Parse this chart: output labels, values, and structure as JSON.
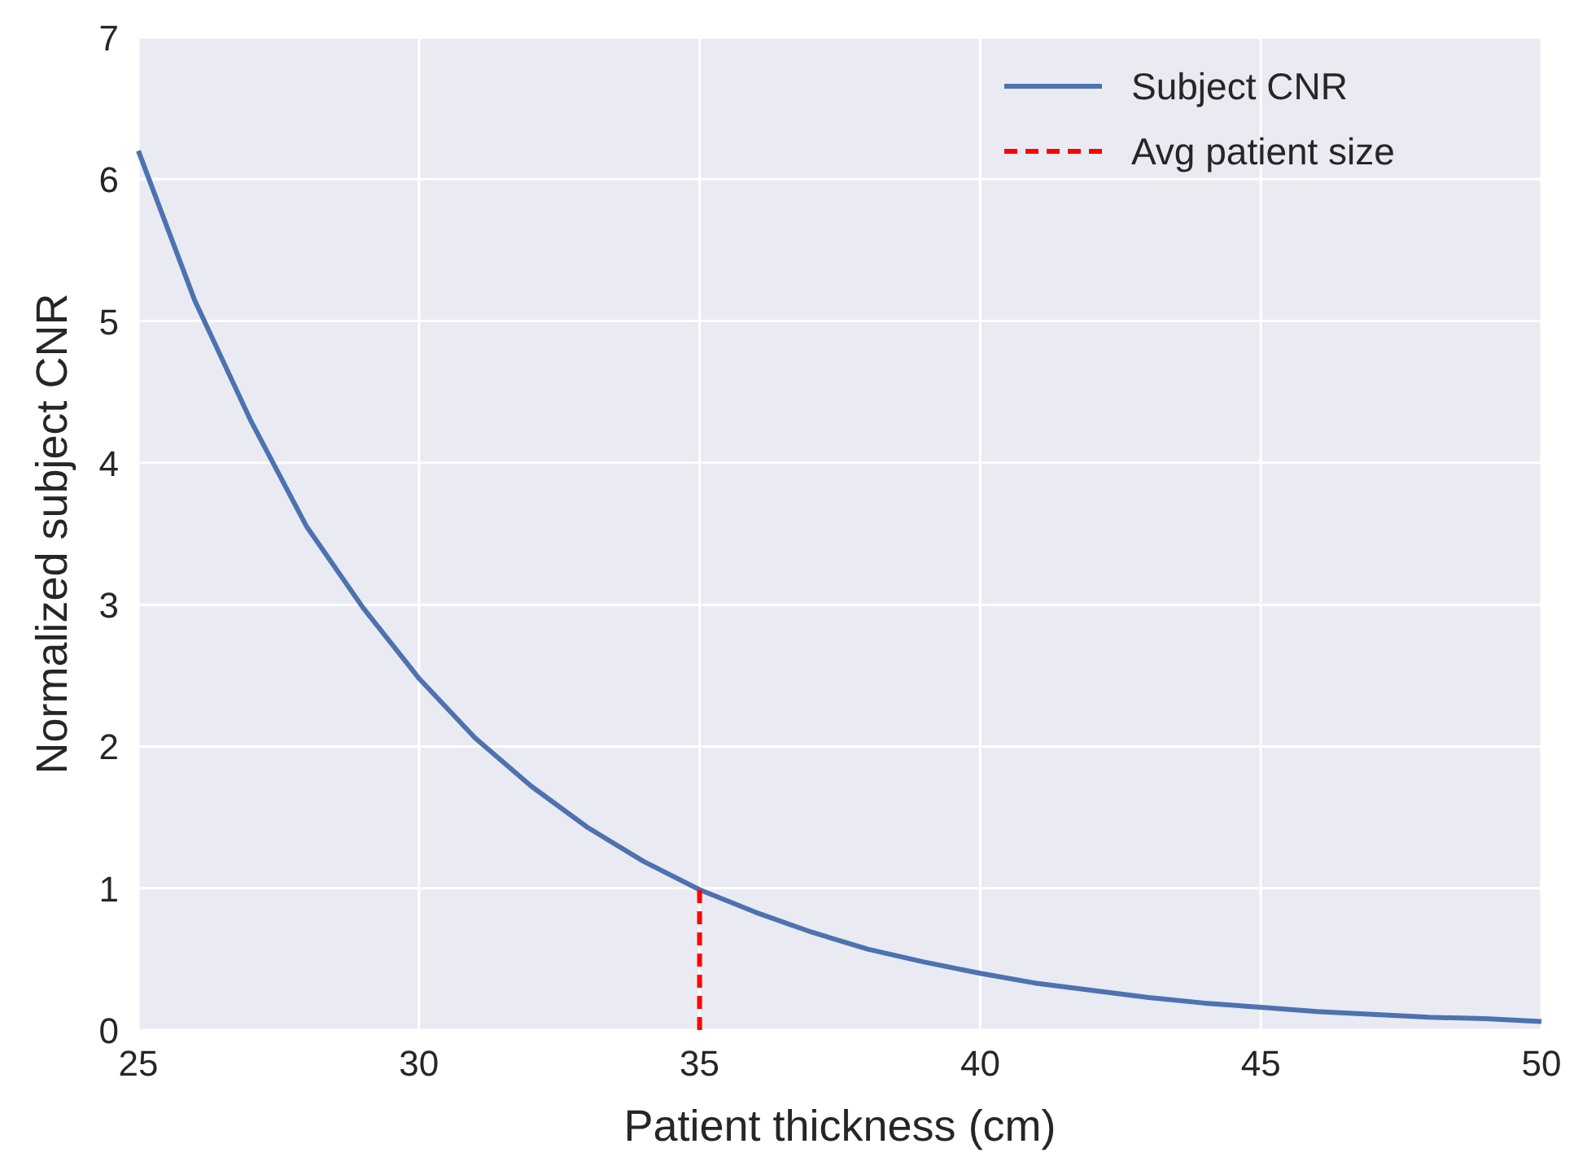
{
  "chart_data": {
    "type": "line",
    "xlabel": "Patient thickness (cm)",
    "ylabel": "Normalized subject CNR",
    "xlim": [
      25,
      50
    ],
    "xticks": [
      25,
      30,
      35,
      40,
      45,
      50
    ],
    "ylim": [
      0,
      7
    ],
    "yticks": [
      0,
      1,
      2,
      3,
      4,
      5,
      6,
      7
    ],
    "grid": true,
    "legend": "top right",
    "series": [
      {
        "name": "Subject CNR",
        "color": "#4c72b0",
        "line_style": "solid",
        "x": [
          25,
          26,
          27,
          28,
          29,
          30,
          31,
          32,
          33,
          34,
          35,
          36,
          37,
          38,
          39,
          40,
          41,
          42,
          43,
          44,
          45,
          46,
          47,
          48,
          49,
          50
        ],
        "values": [
          6.2,
          5.15,
          4.3,
          3.55,
          2.98,
          2.48,
          2.06,
          1.72,
          1.43,
          1.19,
          0.99,
          0.83,
          0.69,
          0.57,
          0.48,
          0.4,
          0.33,
          0.28,
          0.23,
          0.19,
          0.16,
          0.13,
          0.11,
          0.09,
          0.08,
          0.06
        ]
      },
      {
        "name": "Avg patient size",
        "color": "#ff0000",
        "line_style": "dashed",
        "x": [
          35,
          35
        ],
        "values": [
          0,
          0.99
        ]
      }
    ]
  }
}
